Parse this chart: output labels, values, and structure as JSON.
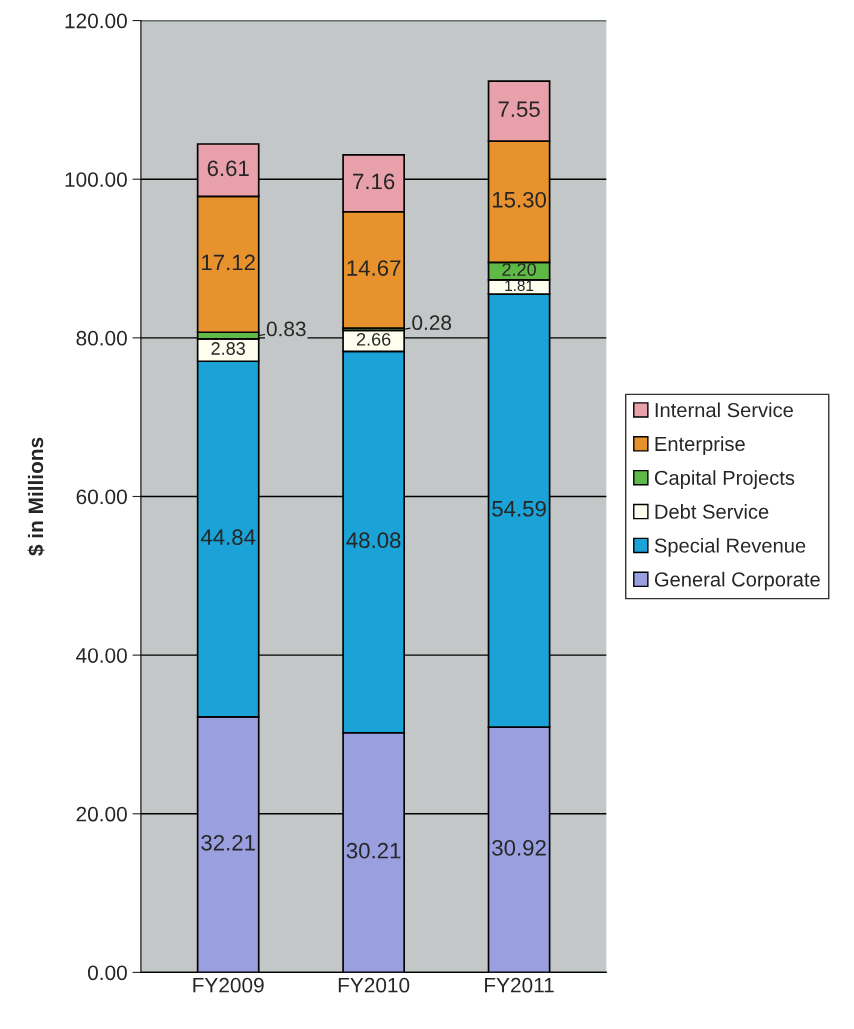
{
  "chart_data": {
    "type": "bar",
    "stacked": true,
    "ylabel": "$ in Millions",
    "categories": [
      "FY2009",
      "FY2010",
      "FY2011"
    ],
    "series": [
      {
        "name": "General Corporate",
        "color": "#9a9fe0",
        "values": [
          32.21,
          30.21,
          30.92
        ],
        "value_labels": [
          "32.21",
          "30.21",
          "30.92"
        ]
      },
      {
        "name": "Special Revenue",
        "color": "#1ba2d6",
        "values": [
          44.84,
          48.08,
          54.59
        ],
        "value_labels": [
          "44.84",
          "48.08",
          "54.59"
        ]
      },
      {
        "name": "Debt Service",
        "color": "#fffff0",
        "values": [
          2.83,
          2.66,
          1.81
        ],
        "value_labels": [
          "2.83",
          "2.66",
          "1.81"
        ]
      },
      {
        "name": "Capital Projects",
        "color": "#5fb946",
        "values": [
          0.83,
          0.28,
          2.2
        ],
        "value_labels": [
          "0.83",
          "0.28",
          "2.20"
        ]
      },
      {
        "name": "Enterprise",
        "color": "#e8922e",
        "values": [
          17.12,
          14.67,
          15.3
        ],
        "value_labels": [
          "17.12",
          "14.67",
          "15.30"
        ]
      },
      {
        "name": "Internal Service",
        "color": "#e8a0aa",
        "values": [
          6.61,
          7.16,
          7.55
        ],
        "value_labels": [
          "6.61",
          "7.16",
          "7.55"
        ]
      }
    ],
    "ylim": [
      0,
      120
    ],
    "yticks": [
      {
        "value": 0,
        "label": "0.00"
      },
      {
        "value": 20,
        "label": "20.00"
      },
      {
        "value": 40,
        "label": "40.00"
      },
      {
        "value": 60,
        "label": "60.00"
      },
      {
        "value": 80,
        "label": "80.00"
      },
      {
        "value": 100,
        "label": "100.00"
      },
      {
        "value": 120,
        "label": "120.00"
      }
    ],
    "grid": "y",
    "legend": "right"
  }
}
